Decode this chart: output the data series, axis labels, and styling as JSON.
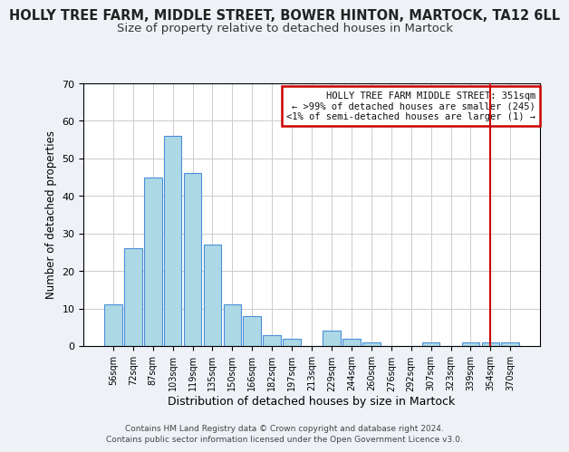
{
  "title": "HOLLY TREE FARM, MIDDLE STREET, BOWER HINTON, MARTOCK, TA12 6LL",
  "subtitle": "Size of property relative to detached houses in Martock",
  "xlabel": "Distribution of detached houses by size in Martock",
  "ylabel": "Number of detached properties",
  "bar_labels": [
    "56sqm",
    "72sqm",
    "87sqm",
    "103sqm",
    "119sqm",
    "135sqm",
    "150sqm",
    "166sqm",
    "182sqm",
    "197sqm",
    "213sqm",
    "229sqm",
    "244sqm",
    "260sqm",
    "276sqm",
    "292sqm",
    "307sqm",
    "323sqm",
    "339sqm",
    "354sqm",
    "370sqm"
  ],
  "bar_values": [
    11,
    26,
    45,
    56,
    46,
    27,
    11,
    8,
    3,
    2,
    0,
    4,
    2,
    1,
    0,
    0,
    1,
    0,
    1,
    1,
    1
  ],
  "bar_color": "#add8e6",
  "bar_edge_color": "#4a90d9",
  "ylim": [
    0,
    70
  ],
  "yticks": [
    0,
    10,
    20,
    30,
    40,
    50,
    60,
    70
  ],
  "vline_x": 19,
  "vline_color": "#cc0000",
  "annotation_title": "HOLLY TREE FARM MIDDLE STREET: 351sqm",
  "annotation_line1": "← >99% of detached houses are smaller (245)",
  "annotation_line2": "<1% of semi-detached houses are larger (1) →",
  "footer1": "Contains HM Land Registry data © Crown copyright and database right 2024.",
  "footer2": "Contains public sector information licensed under the Open Government Licence v3.0.",
  "background_color": "#eef2f7",
  "plot_background": "#ffffff",
  "title_fontsize": 10.5,
  "subtitle_fontsize": 9.5,
  "xlabel_fontsize": 9,
  "ylabel_fontsize": 8.5
}
